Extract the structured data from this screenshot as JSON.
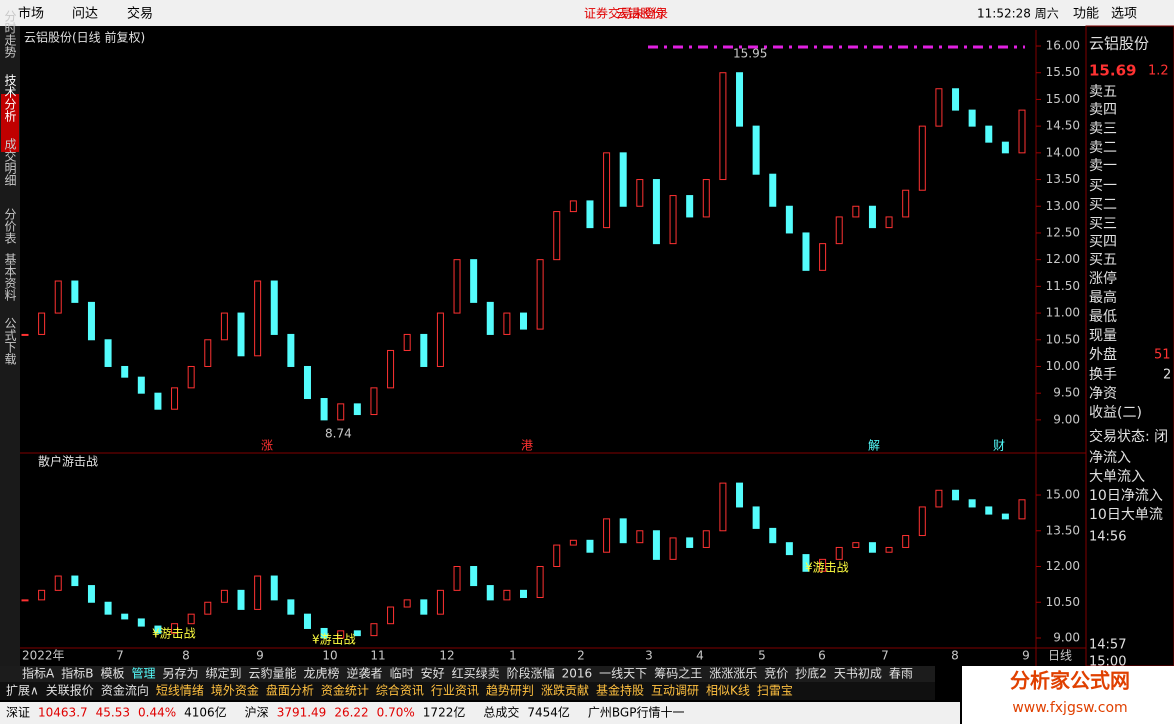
{
  "menu": {
    "items": [
      "市场",
      "问达",
      "交易"
    ],
    "notice": "证券交易未登录",
    "stock": "云铝股份",
    "time": "11:52:28 周六",
    "right": [
      "功能",
      "选项"
    ]
  },
  "side_tabs": [
    "分时走势",
    "技术分析",
    "成交明细",
    "分价表",
    "基本资料",
    "公式下载"
  ],
  "chart_data": [
    {
      "type": "candlestick",
      "title": "云铝股份(日线 前复权)",
      "ylim": [
        8.38,
        16.3
      ],
      "yticks": [
        {
          "value": 9,
          "label": "9.00"
        },
        {
          "value": 9.5,
          "label": "9.50"
        },
        {
          "value": 10,
          "label": "10.00"
        },
        {
          "value": 10.5,
          "label": "10.50"
        },
        {
          "value": 11,
          "label": "11.00"
        },
        {
          "value": 11.5,
          "label": "11.50"
        },
        {
          "value": 12,
          "label": "12.00"
        },
        {
          "value": 12.5,
          "label": "12.50"
        },
        {
          "value": 13,
          "label": "13.00"
        },
        {
          "value": 13.5,
          "label": "13.50"
        },
        {
          "value": 14,
          "label": "14.00"
        },
        {
          "value": 14.5,
          "label": "14.50"
        },
        {
          "value": 15,
          "label": "15.00"
        },
        {
          "value": 15.5,
          "label": "15.50"
        },
        {
          "value": 16,
          "label": "16.00"
        }
      ],
      "values": [
        10.6,
        11.0,
        11.6,
        11.2,
        10.5,
        10.0,
        9.8,
        9.5,
        9.2,
        9.6,
        10.0,
        10.5,
        11.0,
        10.2,
        11.6,
        10.6,
        10.0,
        9.4,
        9.0,
        9.3,
        9.1,
        9.6,
        10.3,
        10.6,
        10.0,
        11.0,
        12.0,
        11.2,
        10.6,
        11.0,
        10.7,
        12.0,
        12.9,
        13.1,
        12.6,
        14.0,
        13.0,
        13.5,
        12.3,
        13.2,
        12.8,
        13.5,
        15.5,
        14.5,
        13.6,
        13.0,
        12.5,
        11.8,
        12.3,
        12.8,
        13.0,
        12.6,
        12.8,
        13.3,
        14.5,
        15.2,
        14.8,
        14.5,
        14.2,
        14.0,
        14.8
      ],
      "high_label": 15.95,
      "low_label": 8.74,
      "events": [
        "涨",
        "港",
        "解",
        "财"
      ]
    },
    {
      "type": "candlestick",
      "title": "散户游击战",
      "ylim": [
        8.58,
        16.68
      ],
      "yticks": [
        {
          "value": 9,
          "label": "9.00"
        },
        {
          "value": 10.5,
          "label": "10.50"
        },
        {
          "value": 12,
          "label": "12.00"
        },
        {
          "value": 13.5,
          "label": "13.50"
        },
        {
          "value": 15,
          "label": "15.00"
        }
      ],
      "signal_label": "¥游击战"
    }
  ],
  "x_axis": {
    "labels": [
      "2022年",
      "7",
      "8",
      "9",
      "10",
      "11",
      "12",
      "1",
      "2",
      "3",
      "4",
      "5",
      "6",
      "7",
      "8",
      "9"
    ],
    "period": "日线"
  },
  "toolbar_tabs": [
    "指标A",
    "指标B",
    "模板",
    "管理",
    "另存为",
    "绑定到",
    "云豹量能",
    "龙虎榜",
    "逆袭者",
    "临时",
    "安好",
    "红买绿卖",
    "阶段涨幅",
    "2016",
    "一线天下",
    "筹码之王",
    "涨涨涨乐",
    "竞价",
    "抄底2",
    "天书初成",
    "春雨"
  ],
  "panel_tabs": [
    "扩展∧",
    "关联报价",
    "资金流向",
    "短线情绪",
    "境外资金",
    "盘面分析",
    "资金统计",
    "综合资讯",
    "行业资讯",
    "趋势研判",
    "涨跌贡献",
    "基金持股",
    "互动调研",
    "相似K线",
    "扫雷宝"
  ],
  "status": [
    "深证",
    "10463.7",
    "45.53",
    "0.44%",
    "4106亿",
    "沪深",
    "3791.49",
    "26.22",
    "0.70%",
    "1722亿",
    "总成交",
    "7454亿",
    "广州BGP行情十一"
  ],
  "quote": {
    "name": "云铝股份",
    "price": "15.69",
    "change": "1.2",
    "rows": [
      "卖五",
      "卖四",
      "卖三",
      "卖二",
      "卖一",
      "买一",
      "买二",
      "买三",
      "买四",
      "买五",
      "涨停",
      "最高",
      "最低",
      "现量",
      "外盘",
      "换手",
      "净资",
      "收益(二)",
      "交易状态: 闭",
      "净流入",
      "大单流入",
      "10日净流入",
      "10日大单流"
    ],
    "outer": "51",
    "turnover": "2",
    "times": [
      "14:56",
      "14:57",
      "15:00"
    ]
  },
  "logo": {
    "name": "分析家公式网",
    "url": "www.fxjgsw.com"
  }
}
